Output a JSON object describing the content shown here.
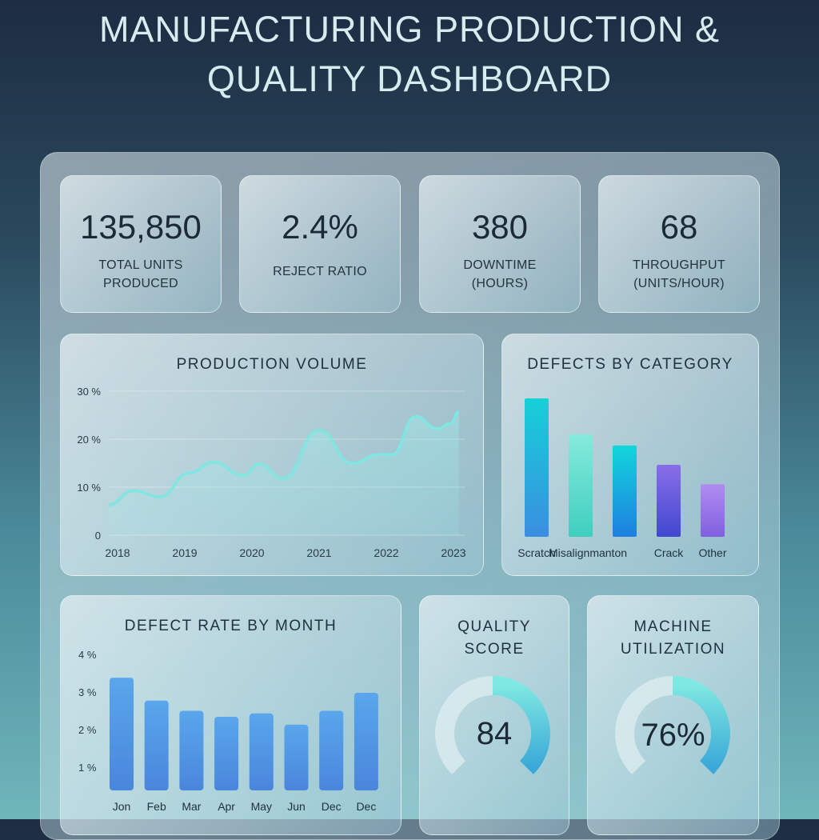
{
  "title": [
    "MANUFACTURING PRODUCTION &",
    "QUALITY DASHBOARD"
  ],
  "kpis": [
    {
      "value": "135,850",
      "label": [
        "TOTAL UNITS",
        "PRODUCED"
      ]
    },
    {
      "value": "2.4%",
      "label": [
        "REJECT RATIO",
        ""
      ]
    },
    {
      "value": "380",
      "label": [
        "DOWNTIME",
        "(HOURS)"
      ]
    },
    {
      "value": "68",
      "label": [
        "THROUGHPUT",
        "(UNITS/HOUR)"
      ]
    }
  ],
  "chart_data": [
    {
      "type": "area",
      "title": "PRODUCTION VOLUME",
      "y_ticks": [
        "0",
        "10 %",
        "20 %",
        "30 %"
      ],
      "x_ticks": [
        "2018",
        "2019",
        "2020",
        "2021",
        "2022",
        "2023"
      ],
      "ylim": [
        0,
        30
      ],
      "grid": true,
      "color": "#7fe6e2",
      "x": [
        2017.86,
        2018.24,
        2018.63,
        2019.07,
        2019.43,
        2019.87,
        2020.11,
        2020.46,
        2021.0,
        2021.49,
        2021.89,
        2022.08,
        2022.44,
        2022.76,
        2022.96,
        2023.08
      ],
      "y": [
        6.3,
        9.3,
        8.0,
        13.0,
        15.2,
        12.5,
        14.8,
        11.8,
        21.8,
        15.0,
        16.8,
        16.8,
        24.7,
        22.2,
        23.3,
        25.8
      ]
    },
    {
      "type": "bar",
      "title": "DEFECTS BY CATEGORY",
      "categories": [
        "Scratch",
        "Misalignmanton",
        "",
        "Crack",
        "Other"
      ],
      "values": [
        100,
        74,
        66,
        52,
        38
      ],
      "colors": [
        [
          "#16d0d8",
          "#3a8ee0"
        ],
        [
          "#86eadc",
          "#3fcfbf"
        ],
        [
          "#12d6dc",
          "#1e7fe0"
        ],
        [
          "#8a6ee8",
          "#4048d0"
        ],
        [
          "#b08cf0",
          "#8060e0"
        ]
      ]
    },
    {
      "type": "bar",
      "title": "DEFECT RATE BY MONTH",
      "categories": [
        "Jon",
        "Feb",
        "Mar",
        "Apr",
        "May",
        "Jun",
        "Dec",
        "Dec"
      ],
      "values": [
        3.38,
        2.77,
        2.5,
        2.34,
        2.43,
        2.13,
        2.5,
        2.98
      ],
      "y_ticks": [
        "1 %",
        "2 %",
        "3 %",
        "4 %"
      ],
      "ylim": [
        0,
        4
      ],
      "color": "#4a96e2"
    }
  ],
  "gauges": [
    {
      "title": [
        "QUALITY",
        "SCORE"
      ],
      "value": "84",
      "percent": 84
    },
    {
      "title": [
        "MACHINE",
        "UTILIZATION"
      ],
      "value": "76%",
      "percent": 76
    }
  ]
}
